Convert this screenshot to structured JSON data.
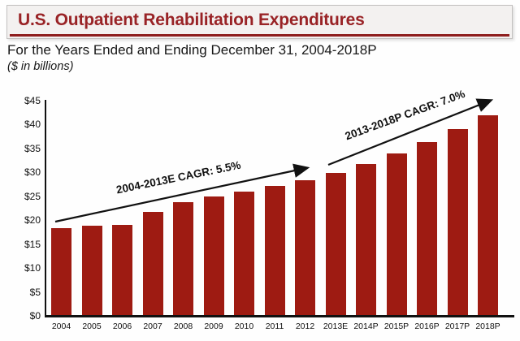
{
  "header": {
    "title": "U.S. Outpatient Rehabilitation Expenditures",
    "subtitle": "For the Years Ended and Ending December 31, 2004-2018P",
    "unit_note": "($ in billions)"
  },
  "colors": {
    "bar": "#9E1B12",
    "title_red": "#992326",
    "rule_red": "#8E1E1E",
    "header_bg": "#F3F1F0",
    "axis": "#111111"
  },
  "chart_data": {
    "type": "bar",
    "title": "U.S. Outpatient Rehabilitation Expenditures",
    "subtitle": "For the Years Ended and Ending December 31, 2004-2018P",
    "unit": "$ in billions",
    "categories": [
      "2004",
      "2005",
      "2006",
      "2007",
      "2008",
      "2009",
      "2010",
      "2011",
      "2012",
      "2013E",
      "2014P",
      "2015P",
      "2016P",
      "2017P",
      "2018P"
    ],
    "values": [
      18.4,
      18.8,
      19.0,
      21.7,
      23.8,
      25.0,
      26.0,
      27.2,
      28.4,
      29.9,
      31.8,
      34.0,
      36.3,
      39.1,
      41.9
    ],
    "ylim": [
      0,
      45
    ],
    "ytick_step": 5,
    "yticks": [
      "$0",
      "$5",
      "$10",
      "$15",
      "$20",
      "$25",
      "$30",
      "$35",
      "$40",
      "$45"
    ],
    "xlabel": "",
    "ylabel": "",
    "grid": false,
    "legend": "none",
    "annotations": [
      {
        "text": "2004-2013E CAGR: 5.5%"
      },
      {
        "text": "2013-2018P CAGR: 7.0%"
      }
    ]
  }
}
